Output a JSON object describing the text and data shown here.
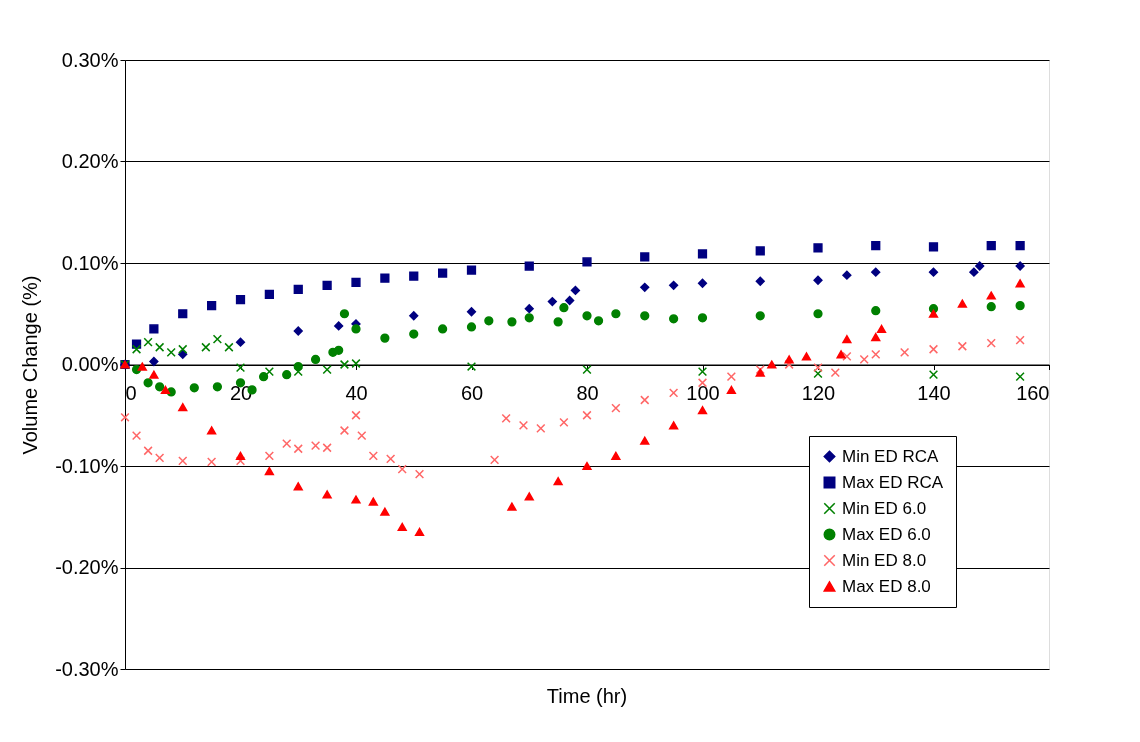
{
  "chart_data": {
    "type": "scatter",
    "xlabel": "Time (hr)",
    "ylabel": "Volume Change (%)",
    "xlim": [
      0,
      160
    ],
    "xticks": [
      0,
      20,
      40,
      60,
      80,
      100,
      120,
      140,
      160
    ],
    "ylim": [
      -0.3,
      0.3
    ],
    "yticks": [
      {
        "value": -0.3,
        "label": "-0.30%"
      },
      {
        "value": -0.2,
        "label": "-0.20%"
      },
      {
        "value": -0.1,
        "label": "-0.10%"
      },
      {
        "value": 0,
        "label": "0.00%"
      },
      {
        "value": 0.1,
        "label": "0.10%"
      },
      {
        "value": 0.2,
        "label": "0.20%"
      },
      {
        "value": 0.3,
        "label": "0.30%"
      }
    ],
    "grid": "y",
    "legend": "bottom right",
    "series": [
      {
        "name": "Min ED RCA",
        "color": "#000080",
        "marker": "diamond",
        "x": [
          0,
          5,
          10,
          20,
          30,
          37,
          40,
          50,
          60,
          70,
          74,
          77,
          78,
          90,
          95,
          100,
          110,
          120,
          125,
          130,
          140,
          147,
          148,
          155
        ],
        "values": [
          0,
          0.003,
          0.01,
          0.022,
          0.033,
          0.038,
          0.04,
          0.048,
          0.052,
          0.055,
          0.062,
          0.063,
          0.073,
          0.076,
          0.078,
          0.08,
          0.082,
          0.083,
          0.088,
          0.091,
          0.091,
          0.091,
          0.097,
          0.097
        ]
      },
      {
        "name": "Max ED RCA",
        "color": "#000080",
        "marker": "square",
        "x": [
          0,
          2,
          5,
          10,
          15,
          20,
          25,
          30,
          35,
          40,
          45,
          50,
          55,
          60,
          70,
          80,
          90,
          100,
          110,
          120,
          130,
          140,
          150,
          155
        ],
        "values": [
          0,
          0.02,
          0.035,
          0.05,
          0.058,
          0.064,
          0.069,
          0.074,
          0.078,
          0.081,
          0.085,
          0.087,
          0.09,
          0.093,
          0.097,
          0.101,
          0.106,
          0.109,
          0.112,
          0.115,
          0.117,
          0.116,
          0.117,
          0.117
        ]
      },
      {
        "name": "Min ED 6.0",
        "color": "#008000",
        "marker": "cross",
        "x": [
          0,
          2,
          4,
          6,
          8,
          10,
          14,
          16,
          18,
          20,
          25,
          30,
          35,
          38,
          40,
          60,
          80,
          100,
          120,
          140,
          155
        ],
        "values": [
          0,
          0.015,
          0.022,
          0.017,
          0.012,
          0.015,
          0.017,
          0.025,
          0.017,
          -0.003,
          -0.007,
          -0.007,
          -0.005,
          0,
          0.001,
          -0.002,
          -0.005,
          -0.007,
          -0.009,
          -0.01,
          -0.012
        ]
      },
      {
        "name": "Max ED 6.0",
        "color": "#008000",
        "marker": "circle",
        "x": [
          2,
          4,
          6,
          8,
          12,
          16,
          20,
          22,
          24,
          28,
          30,
          33,
          36,
          37,
          38,
          40,
          45,
          50,
          55,
          60,
          63,
          67,
          70,
          75,
          76,
          80,
          82,
          85,
          90,
          95,
          100,
          110,
          120,
          130,
          140,
          150,
          155
        ],
        "values": [
          -0.005,
          -0.018,
          -0.022,
          -0.027,
          -0.023,
          -0.022,
          -0.018,
          -0.025,
          -0.012,
          -0.01,
          -0.002,
          0.005,
          0.012,
          0.014,
          0.05,
          0.035,
          0.026,
          0.03,
          0.035,
          0.037,
          0.043,
          0.042,
          0.046,
          0.042,
          0.056,
          0.048,
          0.043,
          0.05,
          0.048,
          0.045,
          0.046,
          0.048,
          0.05,
          0.053,
          0.055,
          0.057,
          0.058
        ]
      },
      {
        "name": "Min ED 8.0",
        "color": "#ff6666",
        "marker": "cross",
        "x": [
          0,
          2,
          4,
          6,
          10,
          15,
          20,
          25,
          28,
          30,
          33,
          35,
          38,
          40,
          41,
          43,
          46,
          48,
          51,
          64,
          66,
          69,
          72,
          76,
          80,
          85,
          90,
          95,
          100,
          105,
          110,
          115,
          120,
          123,
          125,
          128,
          130,
          135,
          140,
          145,
          150,
          155
        ],
        "values": [
          -0.052,
          -0.07,
          -0.085,
          -0.092,
          -0.095,
          -0.096,
          -0.095,
          -0.09,
          -0.078,
          -0.083,
          -0.08,
          -0.082,
          -0.065,
          -0.05,
          -0.07,
          -0.09,
          -0.093,
          -0.103,
          -0.108,
          -0.094,
          -0.053,
          -0.06,
          -0.063,
          -0.057,
          -0.05,
          -0.043,
          -0.035,
          -0.028,
          -0.018,
          -0.012,
          -0.005,
          0,
          -0.003,
          -0.008,
          0.008,
          0.005,
          0.01,
          0.012,
          0.015,
          0.018,
          0.021,
          0.024
        ]
      },
      {
        "name": "Max ED 8.0",
        "color": "#ff0000",
        "marker": "triangle",
        "x": [
          0,
          3,
          5,
          7,
          10,
          15,
          20,
          25,
          30,
          35,
          40,
          43,
          45,
          48,
          51,
          67,
          70,
          75,
          80,
          85,
          90,
          95,
          100,
          105,
          110,
          112,
          115,
          118,
          124,
          125,
          130,
          131,
          140,
          145,
          150,
          155
        ],
        "values": [
          0,
          -0.002,
          -0.01,
          -0.025,
          -0.042,
          -0.065,
          -0.09,
          -0.105,
          -0.12,
          -0.128,
          -0.133,
          -0.135,
          -0.145,
          -0.16,
          -0.165,
          -0.14,
          -0.13,
          -0.115,
          -0.1,
          -0.09,
          -0.075,
          -0.06,
          -0.045,
          -0.025,
          -0.008,
          0,
          0.005,
          0.008,
          0.01,
          0.025,
          0.027,
          0.035,
          0.05,
          0.06,
          0.068,
          0.08
        ]
      }
    ]
  }
}
